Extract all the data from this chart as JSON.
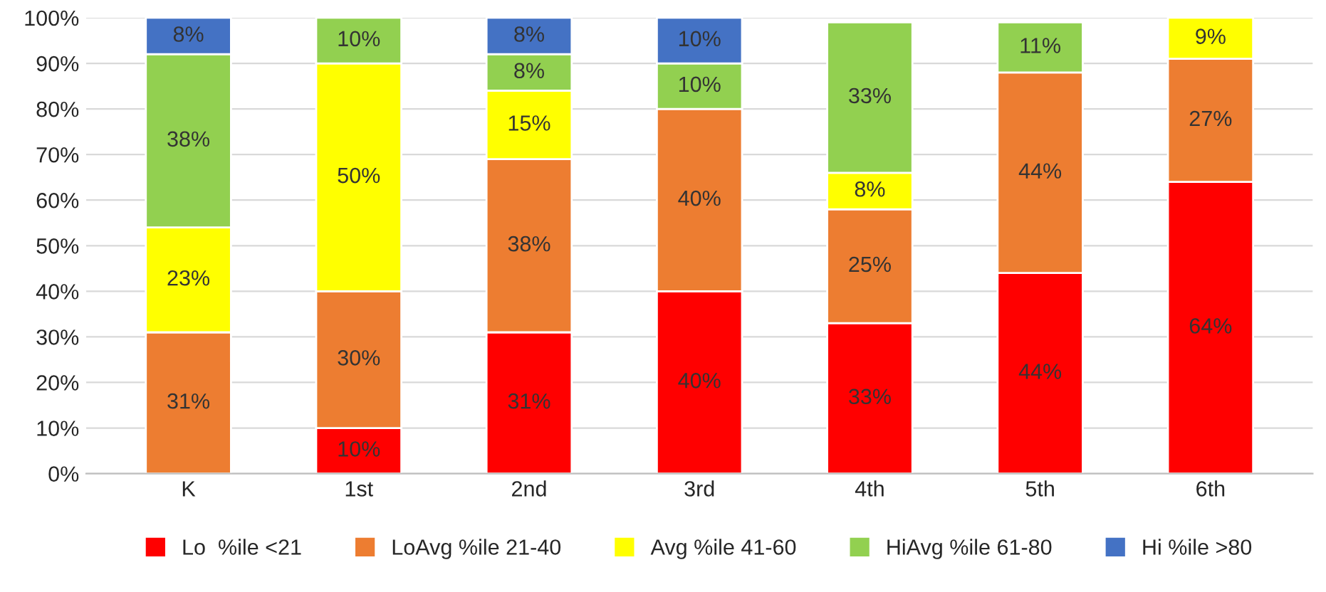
{
  "chart_data": {
    "type": "bar",
    "stacked": true,
    "categories": [
      "K",
      "1st",
      "2nd",
      "3rd",
      "4th",
      "5th",
      "6th"
    ],
    "series": [
      {
        "name": "Lo  %ile <21",
        "color": "#ff0000",
        "values": [
          null,
          10,
          31,
          40,
          33,
          44,
          64
        ],
        "value_labels": [
          null,
          "10%",
          "31%",
          "40%",
          "33%",
          "44%",
          "64%"
        ]
      },
      {
        "name": "LoAvg %ile 21-40",
        "color": "#ed7d31",
        "values": [
          31,
          30,
          38,
          40,
          25,
          44,
          27
        ],
        "value_labels": [
          "31%",
          "30%",
          "38%",
          "40%",
          "25%",
          "44%",
          "27%"
        ]
      },
      {
        "name": "Avg %ile 41-60",
        "color": "#ffff00",
        "values": [
          23,
          50,
          15,
          null,
          8,
          null,
          9
        ],
        "value_labels": [
          "23%",
          "50%",
          "15%",
          null,
          "8%",
          null,
          "9%"
        ]
      },
      {
        "name": "HiAvg %ile 61-80",
        "color": "#92d050",
        "values": [
          38,
          10,
          8,
          10,
          33,
          11,
          null
        ],
        "value_labels": [
          "38%",
          "10%",
          "8%",
          "10%",
          "33%",
          "11%",
          null
        ]
      },
      {
        "name": "Hi %ile >80",
        "color": "#4472c4",
        "values": [
          8,
          null,
          8,
          10,
          null,
          null,
          null
        ],
        "value_labels": [
          "8%",
          null,
          "8%",
          "10%",
          null,
          null,
          null
        ]
      }
    ],
    "ylim": [
      0,
      100
    ],
    "yticks": [
      {
        "value": 0,
        "label": "0%"
      },
      {
        "value": 10,
        "label": "10%"
      },
      {
        "value": 20,
        "label": "20%"
      },
      {
        "value": 30,
        "label": "30%"
      },
      {
        "value": 40,
        "label": "40%"
      },
      {
        "value": 50,
        "label": "50%"
      },
      {
        "value": 60,
        "label": "60%"
      },
      {
        "value": 70,
        "label": "70%"
      },
      {
        "value": 80,
        "label": "80%"
      },
      {
        "value": 90,
        "label": "90%"
      },
      {
        "value": 100,
        "label": "100%"
      }
    ],
    "grid": "y",
    "legend": "bottom"
  }
}
